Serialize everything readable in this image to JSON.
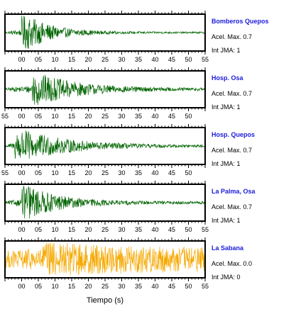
{
  "chart_data": {
    "type": "line",
    "xlabel": "Tiempo (s)",
    "panels": [
      {
        "station": "Bomberos Quepos",
        "accel_label": "Acel. Max. 0.7",
        "jma_label": "Int JMA: 1",
        "color": "#006400",
        "ticks": [
          "00",
          "05",
          "10",
          "15",
          "20",
          "25",
          "30",
          "35",
          "40",
          "45",
          "50",
          "55"
        ],
        "tick_times": [
          0,
          5,
          10,
          15,
          20,
          25,
          30,
          35,
          40,
          45,
          50,
          55
        ],
        "xlim": [
          -5,
          55
        ],
        "amplitude_envelope": {
          "peak_time": 2,
          "decay_s": 8,
          "floor": 0.05
        }
      },
      {
        "station": "Hosp. Osa",
        "accel_label": "Acel. Max. 0.7",
        "jma_label": "Int JMA: 1",
        "color": "#006400",
        "ticks": [
          "55",
          "00",
          "05",
          "10",
          "15",
          "20",
          "25",
          "30",
          "35",
          "40",
          "45",
          "50"
        ],
        "tick_times": [
          -5,
          0,
          5,
          10,
          15,
          20,
          25,
          30,
          35,
          40,
          45,
          50
        ],
        "xlim": [
          -5,
          55
        ],
        "amplitude_envelope": {
          "peak_time": 5,
          "decay_s": 12,
          "floor": 0.08
        }
      },
      {
        "station": "Hosp. Quepos",
        "accel_label": "Acel. Max. 0.7",
        "jma_label": "Int JMA: 1",
        "color": "#006400",
        "ticks": [
          "55",
          "00",
          "05",
          "10",
          "15",
          "20",
          "25",
          "30",
          "35",
          "40",
          "45",
          "50"
        ],
        "tick_times": [
          -5,
          0,
          5,
          10,
          15,
          20,
          25,
          30,
          35,
          40,
          45,
          50
        ],
        "xlim": [
          -5,
          55
        ],
        "amplitude_envelope": {
          "peak_time": 0,
          "decay_s": 14,
          "floor": 0.06
        }
      },
      {
        "station": "La Palma, Osa",
        "accel_label": "Acel. Max. 0.7",
        "jma_label": "Int JMA: 1",
        "color": "#006400",
        "ticks": [
          "00",
          "05",
          "10",
          "15",
          "20",
          "25",
          "30",
          "35",
          "40",
          "45",
          "50",
          "55"
        ],
        "tick_times": [
          0,
          5,
          10,
          15,
          20,
          25,
          30,
          35,
          40,
          45,
          50,
          55
        ],
        "xlim": [
          -5,
          55
        ],
        "amplitude_envelope": {
          "peak_time": 2,
          "decay_s": 10,
          "floor": 0.08
        }
      },
      {
        "station": "La Sabana",
        "accel_label": "Acel. Max. 0.0",
        "jma_label": "Int JMA: 0",
        "color": "#f5a800",
        "ticks": [
          "00",
          "05",
          "10",
          "15",
          "20",
          "25",
          "30",
          "35",
          "40",
          "45",
          "50",
          "55"
        ],
        "tick_times": [
          0,
          5,
          10,
          15,
          20,
          25,
          30,
          35,
          40,
          45,
          50,
          55
        ],
        "xlim": [
          -5,
          55
        ],
        "amplitude_envelope": {
          "peak_time": 8,
          "decay_s": 60,
          "floor": 0.5
        }
      }
    ]
  }
}
